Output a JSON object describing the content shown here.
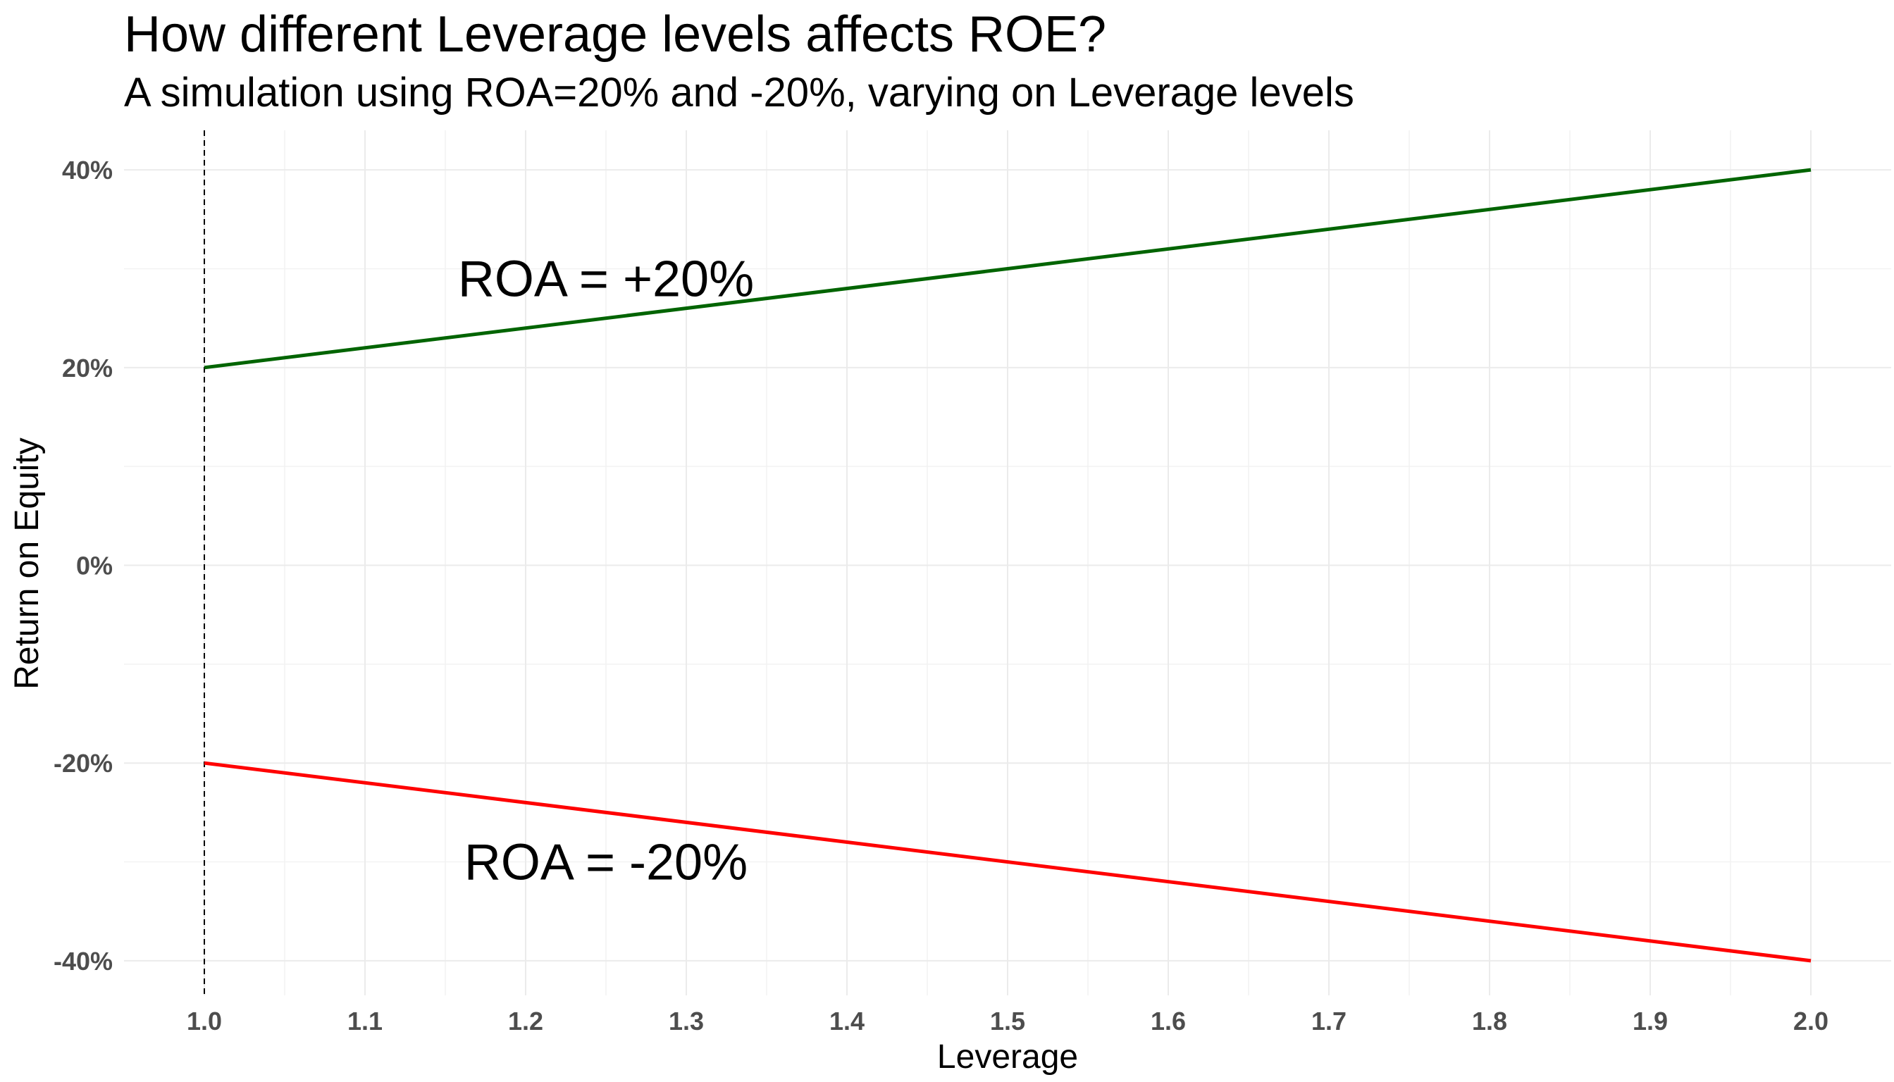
{
  "chart_data": {
    "type": "line",
    "title": "How different Leverage levels affects ROE?",
    "subtitle": "A simulation using ROA=20% and -20%, varying on Leverage levels",
    "xlabel": "Leverage",
    "ylabel": "Return on Equity",
    "xlim": [
      0.95,
      2.05
    ],
    "ylim": [
      -0.435,
      0.44
    ],
    "x_ticks": [
      1.0,
      1.1,
      1.2,
      1.3,
      1.4,
      1.5,
      1.6,
      1.7,
      1.8,
      1.9,
      2.0
    ],
    "x_tick_labels": [
      "1.0",
      "1.1",
      "1.2",
      "1.3",
      "1.4",
      "1.5",
      "1.6",
      "1.7",
      "1.8",
      "1.9",
      "2.0"
    ],
    "y_ticks": [
      0.4,
      0.2,
      0.0,
      -0.2,
      -0.4
    ],
    "y_tick_labels": [
      "40%",
      "20%",
      "0%",
      "-20%",
      "-40%"
    ],
    "grid": true,
    "reference_line": {
      "x": 1.0,
      "style": "dashed",
      "color": "#000000"
    },
    "series": [
      {
        "x": [
          1.0,
          2.0
        ],
        "y": [
          0.2,
          0.4
        ],
        "color": "#006400"
      },
      {
        "x": [
          1.0,
          2.0
        ],
        "y": [
          -0.2,
          -0.4
        ],
        "color": "#ff0000"
      }
    ],
    "annotations": [
      {
        "text": "ROA = +20%",
        "x": 1.25,
        "y": 0.29
      },
      {
        "text": "ROA = -20%",
        "x": 1.25,
        "y": -0.3
      }
    ]
  }
}
